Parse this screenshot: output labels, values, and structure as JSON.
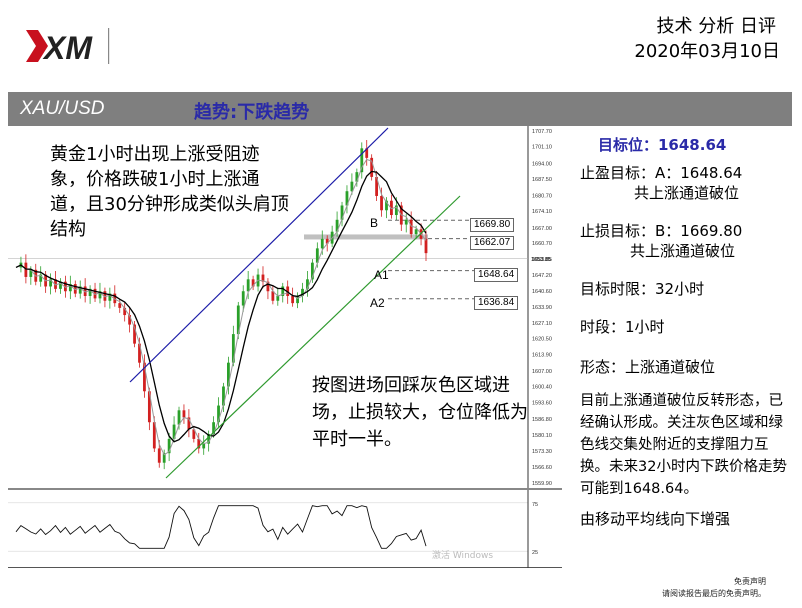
{
  "header": {
    "title": "技术 分析 日评",
    "date": "2020年03月10日",
    "logo_icon": "xm-logo"
  },
  "band": {
    "symbol": "XAU/USD",
    "trend": "趋势:下跌趋势"
  },
  "chart_notes": {
    "pattern_note": "黄金1小时出现上涨受阻迹象，价格跌破1小时上涨通道，且30分钟形成类似头肩顶结构",
    "entry_note": "按图进场回踩灰色区域进场，止损较大，仓位降低为平时一半。"
  },
  "chart_levels": {
    "b_label": "B",
    "a1_label": "A1",
    "a2_label": "A2",
    "tag_1669": "1669.80",
    "tag_1662": "1662.07",
    "tag_1648": "1648.64",
    "tag_1636": "1636.84",
    "watermark": "激活 Windows"
  },
  "colors": {
    "channel_upper": "#1c1ca8",
    "channel_lower": "#2f9a2f",
    "bull_candle": "#2aa02a",
    "bear_candle": "#d22020",
    "ma_slow": "#000000",
    "ma_fast": "#999999",
    "band": "#7f7f7f",
    "accent_text": "#2a2aa8"
  },
  "sidebar": {
    "target": "目标位：1648.64",
    "tp_line1": "止盈目标：A：1648.64",
    "tp_line2": "共上涨通道破位",
    "sl_line1": "止损目标：B：1669.80",
    "sl_line2": "共上涨通道破位",
    "time_limit": "目标时限：32小时",
    "period": "时段：1小时",
    "shape": "形态：上涨通道破位",
    "summary": "目前上涨通道破位反转形态，已经确认形成。关注灰色区域和绿色线交集处附近的支撑阻力互换。未来32小时内下跌价格走势可能到1648.64。",
    "ma_note": "由移动平均线向下增强"
  },
  "footer": {
    "line1": "免责声明",
    "line2": "请阅读报告最后的免责声明。"
  },
  "chart_data": {
    "type": "line",
    "title": "XAU/USD",
    "y_ticks": [
      "1707.70",
      "1701.10",
      "1694.00",
      "1687.50",
      "1680.70",
      "1674.10",
      "1667.00",
      "1660.70",
      "1653.85",
      "1647.20",
      "1640.60",
      "1633.90",
      "1627.10",
      "1620.50",
      "1613.90",
      "1607.00",
      "1600.40",
      "1593.60",
      "1586.80",
      "1580.10",
      "1573.30",
      "1566.60",
      "1559.90"
    ],
    "ylim": [
      1559.9,
      1707.7
    ],
    "current_price": 1653.85,
    "levels": [
      {
        "name": "B",
        "value": 1669.8
      },
      {
        "name": "gray",
        "value": 1662.07
      },
      {
        "name": "A1",
        "value": 1648.64
      },
      {
        "name": "A2",
        "value": 1636.84
      }
    ],
    "close_series": [
      1650,
      1652,
      1646,
      1649,
      1644,
      1647,
      1642,
      1645,
      1641,
      1644,
      1640,
      1643,
      1639,
      1642,
      1638,
      1641,
      1637,
      1640,
      1636,
      1639,
      1635,
      1633,
      1630,
      1626,
      1618,
      1610,
      1598,
      1585,
      1574,
      1568,
      1572,
      1578,
      1584,
      1590,
      1587,
      1582,
      1578,
      1574,
      1576,
      1580,
      1585,
      1592,
      1600,
      1610,
      1622,
      1634,
      1640,
      1645,
      1642,
      1647,
      1644,
      1640,
      1636,
      1638,
      1642,
      1638,
      1635,
      1638,
      1641,
      1645,
      1652,
      1658,
      1662,
      1660,
      1665,
      1670,
      1676,
      1682,
      1686,
      1690,
      1700,
      1696,
      1688,
      1680,
      1674,
      1678,
      1672,
      1676,
      1668,
      1670,
      1664,
      1666,
      1662,
      1656
    ],
    "oscillator_ylim": [
      20,
      80
    ],
    "oscillator_ticks": [
      "75",
      "25"
    ]
  }
}
